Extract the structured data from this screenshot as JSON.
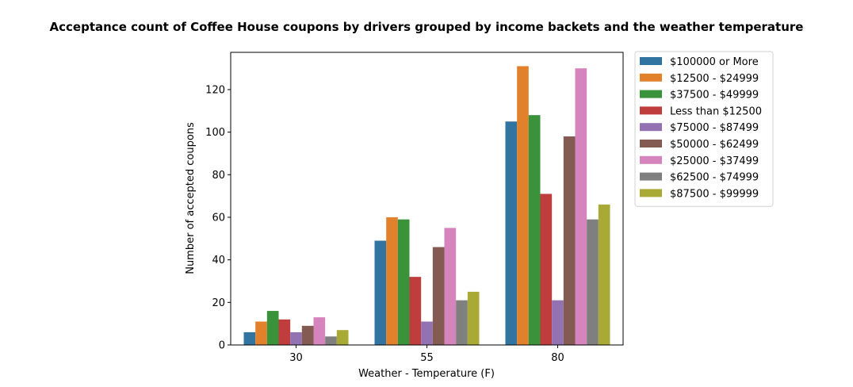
{
  "chart_data": {
    "type": "bar",
    "title": "Acceptance count of Coffee House coupons by drivers grouped by income backets and the weather temperature",
    "xlabel": "Weather - Temperature (F)",
    "ylabel": "Number of accepted coupons",
    "categories": [
      "30",
      "55",
      "80"
    ],
    "ylim": [
      0,
      137.5
    ],
    "yticks": [
      0,
      20,
      40,
      60,
      80,
      100,
      120
    ],
    "legend_position": "outside-right-top",
    "grid": false,
    "series": [
      {
        "name": "$100000 or More",
        "color": "#3274a1",
        "values": [
          6,
          49,
          105
        ]
      },
      {
        "name": "$12500 - $24999",
        "color": "#e1812c",
        "values": [
          11,
          60,
          131
        ]
      },
      {
        "name": "$37500 - $49999",
        "color": "#3a923a",
        "values": [
          16,
          59,
          108
        ]
      },
      {
        "name": "Less than $12500",
        "color": "#c03d3e",
        "values": [
          12,
          32,
          71
        ]
      },
      {
        "name": "$75000 - $87499",
        "color": "#9372b2",
        "values": [
          6,
          11,
          21
        ]
      },
      {
        "name": "$50000 - $62499",
        "color": "#845b53",
        "values": [
          9,
          46,
          98
        ]
      },
      {
        "name": "$25000 - $37499",
        "color": "#d684bd",
        "values": [
          13,
          55,
          130
        ]
      },
      {
        "name": "$62500 - $74999",
        "color": "#7f7f7f",
        "values": [
          4,
          21,
          59
        ]
      },
      {
        "name": "$87500 - $99999",
        "color": "#a9aa35",
        "values": [
          7,
          25,
          66
        ]
      }
    ]
  }
}
